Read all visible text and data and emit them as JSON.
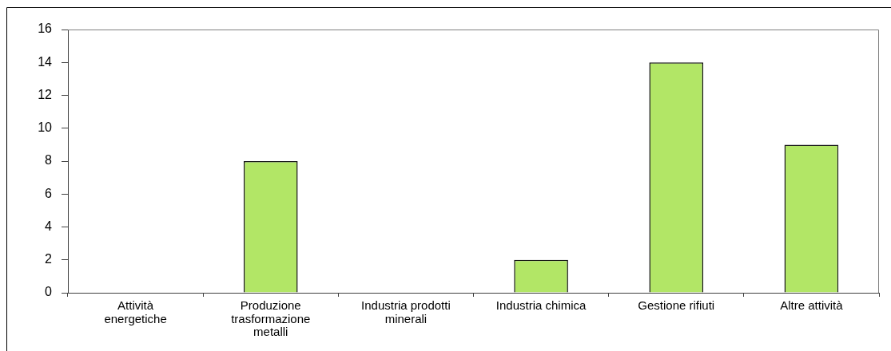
{
  "chart_data": {
    "type": "bar",
    "categories": [
      "Attività energetiche",
      "Produzione trasformazione metalli",
      "Industria prodotti minerali",
      "Industria chimica",
      "Gestione rifiuti",
      "Altre attività"
    ],
    "values": [
      0,
      8,
      0,
      2,
      14,
      9
    ],
    "color": "#b2e666",
    "ylim": [
      0,
      16
    ],
    "yticks": [
      0,
      2,
      4,
      6,
      8,
      10,
      12,
      14,
      16
    ]
  }
}
